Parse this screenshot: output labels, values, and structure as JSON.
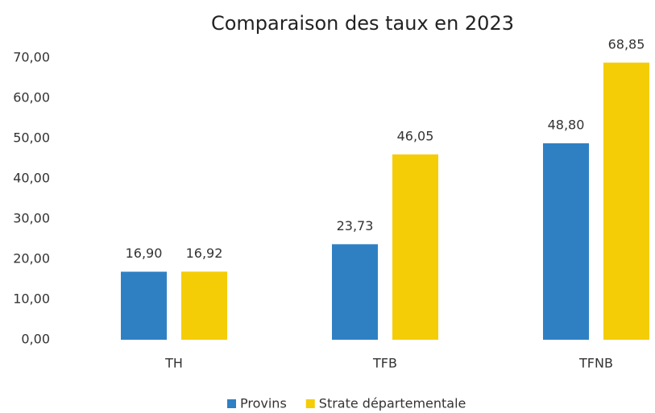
{
  "chart_data": {
    "type": "bar",
    "title": "Comparaison des taux en 2023",
    "categories": [
      "TH",
      "TFB",
      "TFNB"
    ],
    "series": [
      {
        "name": "Provins",
        "color": "#2f80c3",
        "values": [
          16.9,
          23.73,
          48.8
        ],
        "value_labels": [
          "16,90",
          "23,73",
          "48,80"
        ]
      },
      {
        "name": "Strate départementale",
        "color": "#f4cd07",
        "values": [
          16.92,
          46.05,
          68.85
        ],
        "value_labels": [
          "16,92",
          "46,05",
          "68,85"
        ]
      }
    ],
    "ylim": [
      0,
      70
    ],
    "yticks": [
      {
        "value": 0,
        "label": "0,00"
      },
      {
        "value": 10,
        "label": "10,00"
      },
      {
        "value": 20,
        "label": "20,00"
      },
      {
        "value": 30,
        "label": "30,00"
      },
      {
        "value": 40,
        "label": "40,00"
      },
      {
        "value": 50,
        "label": "50,00"
      },
      {
        "value": 60,
        "label": "60,00"
      },
      {
        "value": 70,
        "label": "70,00"
      }
    ],
    "grid": false,
    "legend": "bottom"
  }
}
